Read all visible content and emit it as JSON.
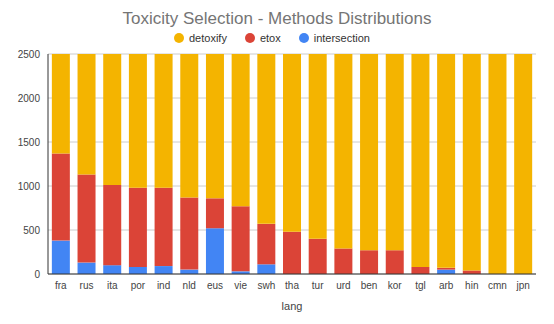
{
  "chart_data": {
    "type": "bar",
    "title": "Toxicity Selection - Methods Distributions",
    "x_label": "lang",
    "categories": [
      "fra",
      "rus",
      "ita",
      "por",
      "ind",
      "nld",
      "eus",
      "vie",
      "swh",
      "tha",
      "tur",
      "urd",
      "ben",
      "kor",
      "tgl",
      "arb",
      "hin",
      "cmn",
      "jpn"
    ],
    "series": [
      {
        "name": "detoxify",
        "color": "#f4b400",
        "values": [
          1130,
          1370,
          1490,
          1520,
          1520,
          1630,
          1640,
          1730,
          1930,
          2020,
          2100,
          2210,
          2230,
          2230,
          2420,
          2430,
          2460,
          2500,
          2500
        ]
      },
      {
        "name": "etox",
        "color": "#db4437",
        "values": [
          990,
          1000,
          910,
          900,
          890,
          820,
          340,
          740,
          460,
          480,
          400,
          290,
          270,
          270,
          80,
          20,
          40,
          0,
          0
        ]
      },
      {
        "name": "intersection",
        "color": "#4285f4",
        "values": [
          380,
          130,
          100,
          80,
          90,
          50,
          520,
          30,
          110,
          0,
          0,
          0,
          0,
          0,
          0,
          50,
          0,
          0,
          0
        ]
      }
    ],
    "ylim": [
      0,
      2500
    ],
    "yticks": [
      0,
      500,
      1000,
      1500,
      2000,
      2500
    ],
    "stacked": true,
    "grid": true,
    "legend": "top"
  }
}
